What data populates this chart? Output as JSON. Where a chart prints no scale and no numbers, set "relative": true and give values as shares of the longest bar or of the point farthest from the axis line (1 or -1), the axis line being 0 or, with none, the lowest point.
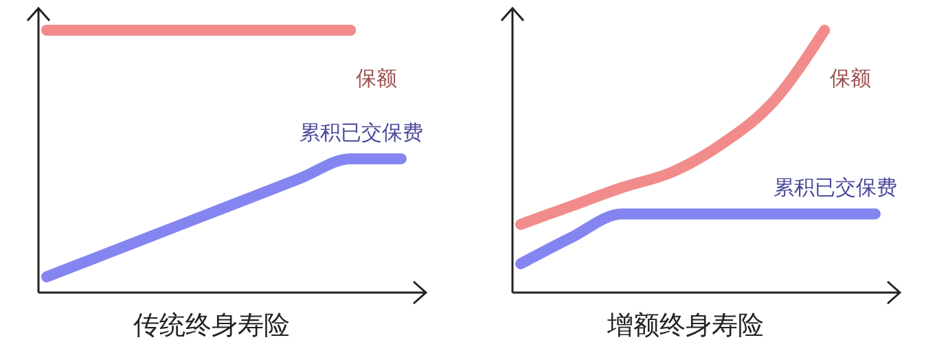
{
  "chart_data": [
    {
      "type": "line",
      "relative": true,
      "xlabel": "传统终身寿险",
      "categories": [
        null,
        null,
        null,
        null,
        null,
        null,
        null,
        null
      ],
      "series": [
        {
          "name": "保额",
          "color": "#f07878",
          "values": [
            1,
            1,
            1,
            1,
            1,
            1,
            1,
            null
          ]
        },
        {
          "name": "累积已交保费",
          "color": "#7070ee",
          "values": [
            0.06,
            0.135,
            0.21,
            0.285,
            0.36,
            0.435,
            0.51,
            0.51
          ]
        }
      ]
    },
    {
      "type": "line",
      "relative": true,
      "xlabel": "增额终身寿险",
      "categories": [
        null,
        null,
        null,
        null,
        null,
        null,
        null,
        null
      ],
      "series": [
        {
          "name": "保额",
          "color": "#f07878",
          "values": [
            0.26,
            0.33,
            0.4,
            0.46,
            0.57,
            0.73,
            1,
            null
          ]
        },
        {
          "name": "累积已交保费",
          "color": "#7070ee",
          "values": [
            0.11,
            0.21,
            0.3,
            0.3,
            0.3,
            0.3,
            0.3,
            0.3
          ]
        }
      ]
    }
  ]
}
